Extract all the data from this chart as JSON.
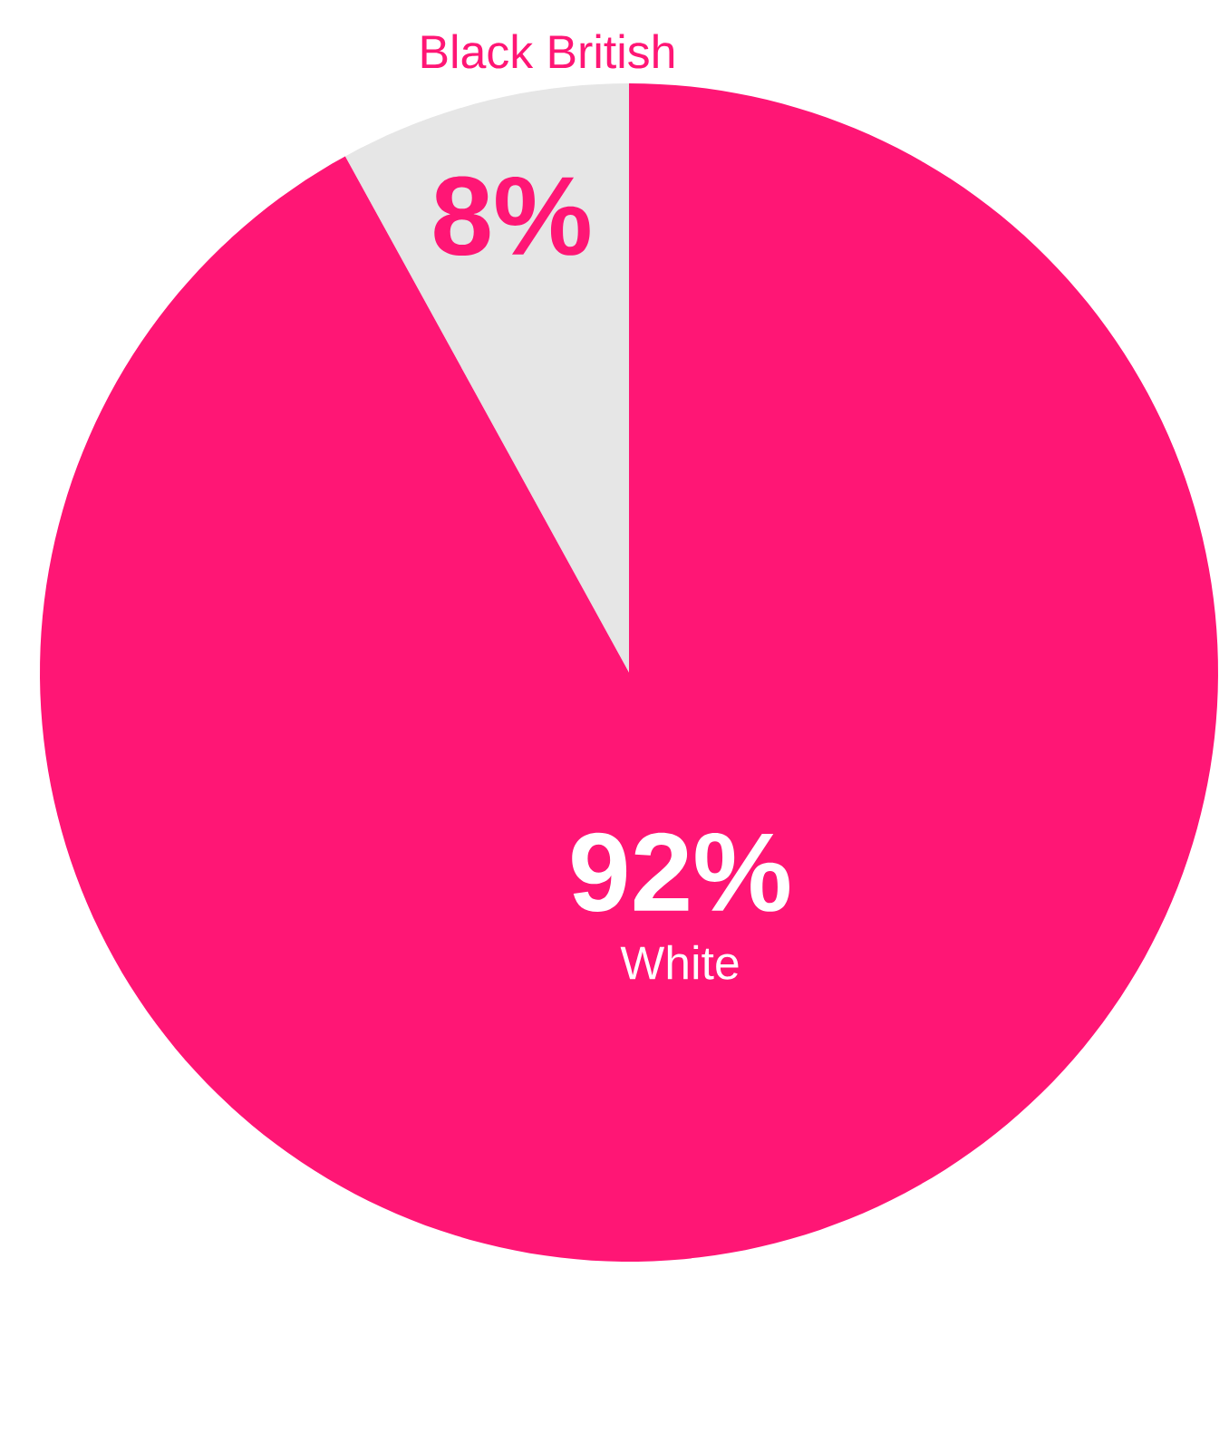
{
  "chart_data": {
    "type": "pie",
    "categories": [
      "Black British",
      "White"
    ],
    "values": [
      8,
      92
    ],
    "value_labels": [
      "8%",
      "92%"
    ],
    "colors": [
      "#e6e6e6",
      "#ff1675"
    ]
  }
}
